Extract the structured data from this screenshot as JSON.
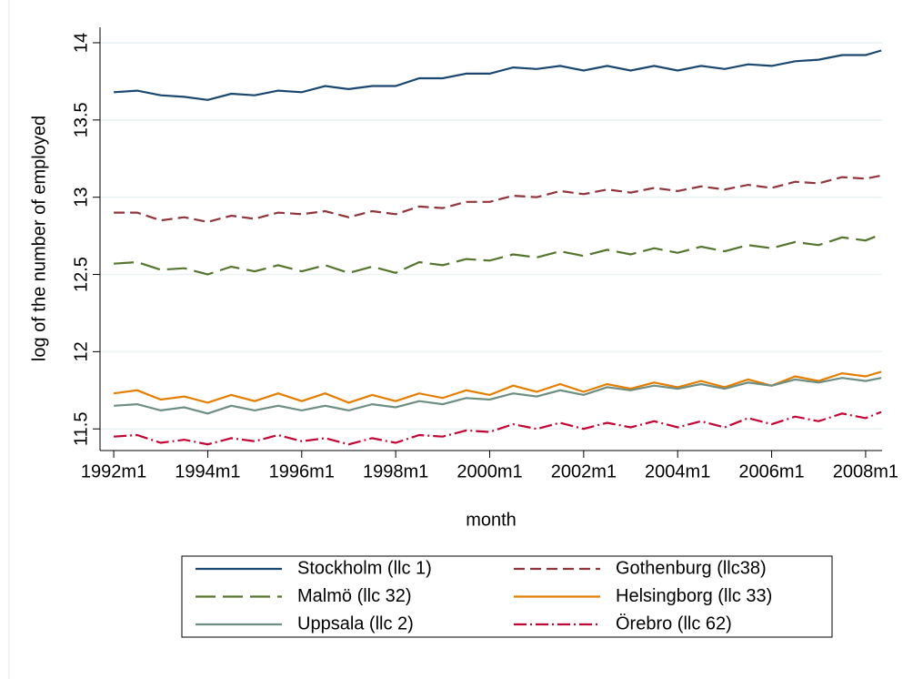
{
  "chart_data": {
    "type": "line",
    "y_label": "log of the number of employed",
    "x_label": "month",
    "x": [
      384,
      390,
      396,
      402,
      408,
      414,
      420,
      426,
      432,
      438,
      444,
      450,
      456,
      462,
      468,
      474,
      480,
      486,
      492,
      498,
      504,
      510,
      516,
      522,
      528,
      534,
      540,
      546,
      552,
      558,
      564,
      570,
      576,
      580
    ],
    "xlim": [
      380.5,
      580.2
    ],
    "ylim": [
      11.36,
      14.1
    ],
    "xticks": [
      {
        "value": 384,
        "label": "1992m1"
      },
      {
        "value": 408,
        "label": "1994m1"
      },
      {
        "value": 432,
        "label": "1996m1"
      },
      {
        "value": 456,
        "label": "1998m1"
      },
      {
        "value": 480,
        "label": "2000m1"
      },
      {
        "value": 504,
        "label": "2002m1"
      },
      {
        "value": 528,
        "label": "2004m1"
      },
      {
        "value": 552,
        "label": "2006m1"
      },
      {
        "value": 576,
        "label": "2008m1"
      }
    ],
    "yticks": [
      11.5,
      12,
      12.5,
      13,
      13.5,
      14
    ],
    "grid": true,
    "legend": "bottom",
    "series": [
      {
        "name": "Stockholm (llc 1)",
        "color": "#1a476f",
        "line_style": "solid",
        "values": [
          13.68,
          13.69,
          13.66,
          13.65,
          13.63,
          13.67,
          13.66,
          13.69,
          13.68,
          13.72,
          13.7,
          13.72,
          13.72,
          13.77,
          13.77,
          13.8,
          13.8,
          13.84,
          13.83,
          13.85,
          13.82,
          13.85,
          13.82,
          13.85,
          13.82,
          13.85,
          13.83,
          13.86,
          13.85,
          13.88,
          13.89,
          13.92,
          13.92,
          13.95
        ]
      },
      {
        "name": "Gothenburg (llc38)",
        "color": "#90353b",
        "line_style": "dash",
        "values": [
          12.9,
          12.9,
          12.85,
          12.87,
          12.84,
          12.88,
          12.86,
          12.9,
          12.89,
          12.91,
          12.87,
          12.91,
          12.89,
          12.94,
          12.93,
          12.97,
          12.97,
          13.01,
          13.0,
          13.04,
          13.02,
          13.05,
          13.03,
          13.06,
          13.04,
          13.07,
          13.05,
          13.08,
          13.06,
          13.1,
          13.09,
          13.13,
          13.12,
          13.14
        ]
      },
      {
        "name": "Malmö (llc 32)",
        "color": "#55752f",
        "line_style": "longdash",
        "values": [
          12.57,
          12.58,
          12.53,
          12.54,
          12.5,
          12.55,
          12.52,
          12.56,
          12.52,
          12.56,
          12.51,
          12.55,
          12.51,
          12.58,
          12.56,
          12.6,
          12.59,
          12.63,
          12.61,
          12.65,
          12.62,
          12.66,
          12.63,
          12.67,
          12.64,
          12.68,
          12.65,
          12.69,
          12.67,
          12.71,
          12.69,
          12.74,
          12.72,
          12.76
        ]
      },
      {
        "name": "Helsingborg (llc 33)",
        "color": "#e37e00",
        "line_style": "solid",
        "values": [
          11.73,
          11.75,
          11.69,
          11.71,
          11.67,
          11.72,
          11.68,
          11.73,
          11.68,
          11.73,
          11.67,
          11.72,
          11.68,
          11.73,
          11.7,
          11.75,
          11.72,
          11.78,
          11.74,
          11.79,
          11.74,
          11.79,
          11.76,
          11.8,
          11.77,
          11.81,
          11.77,
          11.82,
          11.78,
          11.84,
          11.81,
          11.86,
          11.84,
          11.87
        ]
      },
      {
        "name": "Uppsala (llc 2)",
        "color": "#6e8e84",
        "line_style": "solid",
        "values": [
          11.65,
          11.66,
          11.62,
          11.64,
          11.6,
          11.65,
          11.62,
          11.65,
          11.62,
          11.65,
          11.62,
          11.66,
          11.64,
          11.68,
          11.66,
          11.7,
          11.69,
          11.73,
          11.71,
          11.75,
          11.72,
          11.77,
          11.75,
          11.78,
          11.76,
          11.79,
          11.76,
          11.8,
          11.78,
          11.82,
          11.8,
          11.83,
          11.81,
          11.83
        ]
      },
      {
        "name": "Örebro (llc 62)",
        "color": "#c10534",
        "line_style": "dashdot",
        "values": [
          11.45,
          11.46,
          11.41,
          11.43,
          11.4,
          11.44,
          11.42,
          11.46,
          11.42,
          11.44,
          11.4,
          11.44,
          11.41,
          11.46,
          11.45,
          11.49,
          11.48,
          11.53,
          11.5,
          11.54,
          11.5,
          11.54,
          11.51,
          11.55,
          11.51,
          11.55,
          11.51,
          11.57,
          11.53,
          11.58,
          11.55,
          11.6,
          11.57,
          11.61
        ]
      }
    ]
  }
}
